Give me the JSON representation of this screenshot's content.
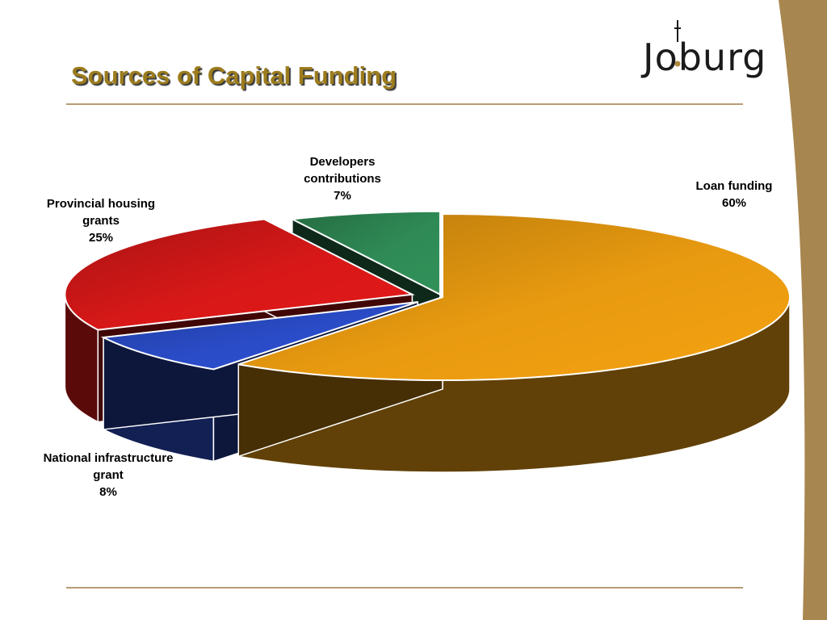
{
  "slide": {
    "title": "Sources of Capital Funding",
    "logo_text": "Joburg"
  },
  "colors": {
    "title": "#9c7c1c",
    "rule": "#b79b74",
    "side_curve": "#a8864f"
  },
  "chart_data": {
    "type": "pie",
    "title": "",
    "slices": [
      {
        "name": "Loan funding",
        "value": 60,
        "label": "60%",
        "color": "#e89a10"
      },
      {
        "name": "National infrastructure grant",
        "value": 8,
        "label": "8%",
        "color": "#2a4cc8"
      },
      {
        "name": "Provincial housing grants",
        "value": 25,
        "label": "25%",
        "color": "#d81818"
      },
      {
        "name": "Developers contributions",
        "value": 7,
        "label": "7%",
        "color": "#2f8a55"
      }
    ],
    "legend": "none",
    "style": "3d exploded"
  }
}
